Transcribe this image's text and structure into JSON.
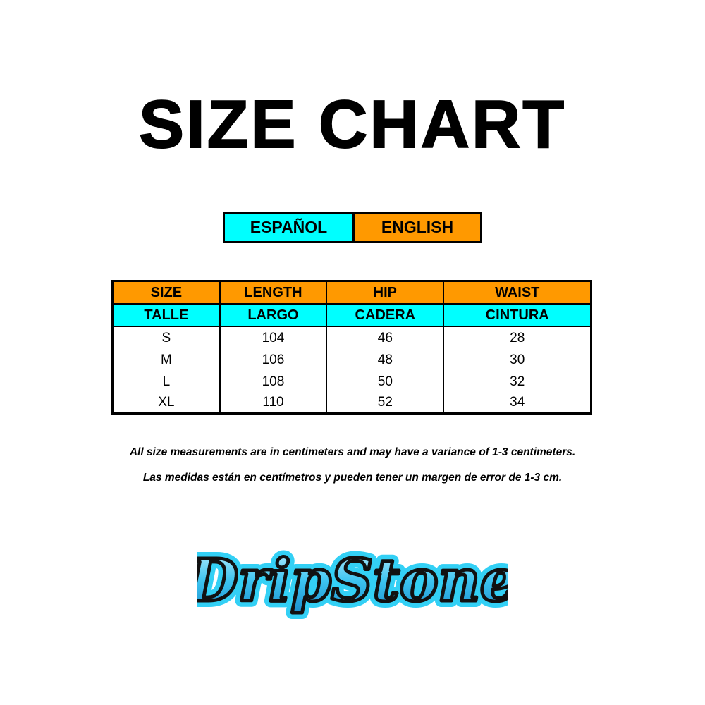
{
  "title": "SIZE CHART",
  "language_toggle": {
    "spanish": "ESPAÑOL",
    "english": "ENGLISH"
  },
  "colors": {
    "cyan": "#00ffff",
    "orange": "#ff9900"
  },
  "table": {
    "headers_en": [
      "SIZE",
      "LENGTH",
      "HIP",
      "WAIST"
    ],
    "headers_es": [
      "TALLE",
      "LARGO",
      "CADERA",
      "CINTURA"
    ],
    "rows": [
      [
        "S",
        "104",
        "46",
        "28"
      ],
      [
        "M",
        "106",
        "48",
        "30"
      ],
      [
        "L",
        "108",
        "50",
        "32"
      ],
      [
        "XL",
        "110",
        "52",
        "34"
      ]
    ]
  },
  "notes": {
    "en": "All size measurements are in centimeters and may have a variance of 1-3 centimeters.",
    "es": "Las medidas están en centímetros y pueden tener un margen de error de 1-3 cm."
  },
  "logo": {
    "text": "DripStone"
  }
}
